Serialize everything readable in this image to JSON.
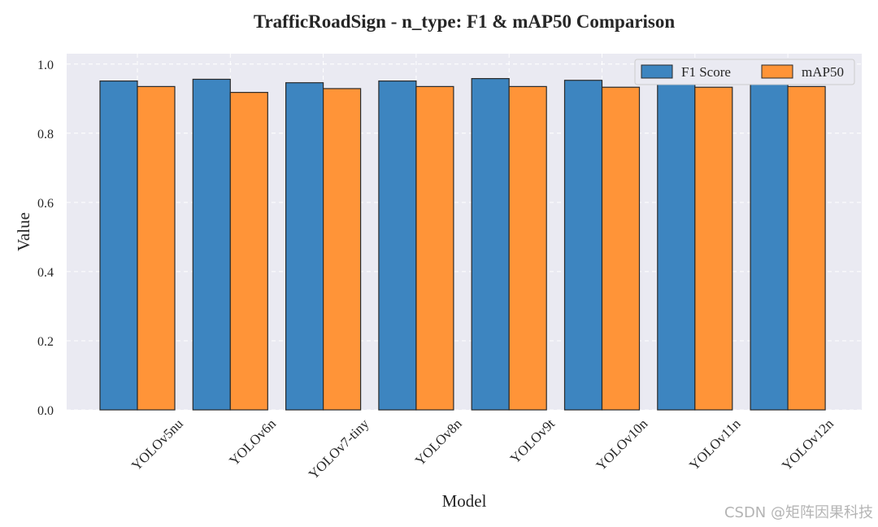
{
  "watermark": "CSDN @矩阵因果科技",
  "chart_data": {
    "type": "bar",
    "title": "TrafficRoadSign - n_type: F1 & mAP50 Comparison",
    "xlabel": "Model",
    "ylabel": "Value",
    "ylim": [
      0,
      1.03
    ],
    "yticks": [
      0.0,
      0.2,
      0.4,
      0.6,
      0.8,
      1.0
    ],
    "ytick_labels": [
      "0.0",
      "0.2",
      "0.4",
      "0.6",
      "0.8",
      "1.0"
    ],
    "grid": true,
    "legend_position": "top-right",
    "categories": [
      "YOLOv5nu",
      "YOLOv6n",
      "YOLOv7-tiny",
      "YOLOv8n",
      "YOLOv9t",
      "YOLOv10n",
      "YOLOv11n",
      "YOLOv12n"
    ],
    "series": [
      {
        "name": "F1 Score",
        "color": "#3d85c0",
        "values": [
          0.951,
          0.956,
          0.946,
          0.951,
          0.958,
          0.953,
          0.954,
          0.952
        ]
      },
      {
        "name": "mAP50",
        "color": "#ff9438",
        "values": [
          0.935,
          0.918,
          0.929,
          0.935,
          0.935,
          0.933,
          0.933,
          0.935
        ]
      }
    ]
  }
}
